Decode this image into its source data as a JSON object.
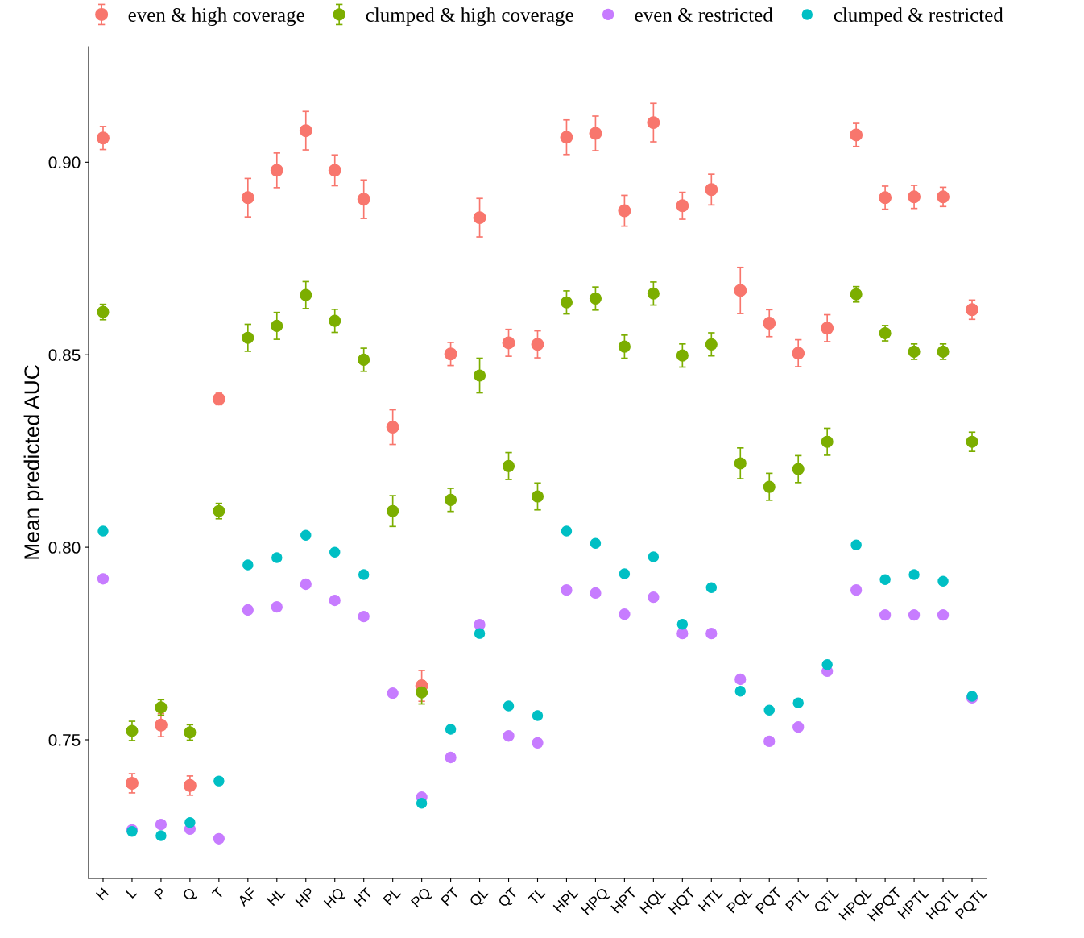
{
  "chart_data": {
    "type": "scatter",
    "ylabel": "Mean predicted AUC",
    "categories": [
      "H",
      "L",
      "P",
      "Q",
      "T",
      "AF",
      "HL",
      "HP",
      "HQ",
      "HT",
      "PL",
      "PQ",
      "PT",
      "QL",
      "QT",
      "TL",
      "HPL",
      "HPQ",
      "HPT",
      "HQL",
      "HQT",
      "HTL",
      "PQL",
      "PQT",
      "PTL",
      "QTL",
      "HPQL",
      "HPQT",
      "HPTL",
      "HQTL",
      "PQTL"
    ],
    "ylim": [
      0.714,
      0.93
    ],
    "yticks": [
      {
        "value": 0.75,
        "label": "0.75"
      },
      {
        "value": 0.8,
        "label": "0.80"
      },
      {
        "value": 0.85,
        "label": "0.85"
      },
      {
        "value": 0.9,
        "label": "0.90"
      }
    ],
    "grid": false,
    "legend": "top",
    "marker": "circle",
    "series": [
      {
        "name": "even & high coverage",
        "color": "#f8766d",
        "values": [
          0.9063,
          0.7387,
          0.7538,
          0.7381,
          0.8385,
          0.8908,
          0.8979,
          0.9082,
          0.8979,
          0.8904,
          0.8312,
          0.764,
          0.8502,
          0.8856,
          0.8531,
          0.8527,
          0.9065,
          0.9075,
          0.8874,
          0.9103,
          0.8887,
          0.8929,
          0.8667,
          0.8582,
          0.8504,
          0.8569,
          0.9071,
          0.8908,
          0.891,
          0.891,
          0.8617
        ],
        "errors": [
          0.003,
          0.0025,
          0.003,
          0.0025,
          0.0015,
          0.005,
          0.0045,
          0.005,
          0.004,
          0.005,
          0.0045,
          0.004,
          0.003,
          0.005,
          0.0035,
          0.0035,
          0.0045,
          0.0045,
          0.004,
          0.005,
          0.0035,
          0.004,
          0.006,
          0.0035,
          0.0035,
          0.0035,
          0.003,
          0.003,
          0.003,
          0.0025,
          0.0025
        ]
      },
      {
        "name": "clumped & high coverage",
        "color": "#7cae00",
        "values": [
          0.8611,
          0.7523,
          0.7584,
          0.7519,
          0.8094,
          0.8544,
          0.8575,
          0.8655,
          0.8588,
          0.8487,
          0.8094,
          0.7623,
          0.8123,
          0.8446,
          0.8211,
          0.8132,
          0.8636,
          0.8646,
          0.8521,
          0.8659,
          0.8498,
          0.8527,
          0.8218,
          0.8157,
          0.8203,
          0.8274,
          0.8657,
          0.8556,
          0.8508,
          0.8508,
          0.8274
        ],
        "errors": [
          0.002,
          0.0025,
          0.002,
          0.002,
          0.002,
          0.0035,
          0.0035,
          0.0035,
          0.003,
          0.003,
          0.004,
          0.003,
          0.003,
          0.0045,
          0.0035,
          0.0035,
          0.003,
          0.003,
          0.003,
          0.003,
          0.003,
          0.003,
          0.004,
          0.0035,
          0.0035,
          0.0035,
          0.002,
          0.002,
          0.002,
          0.002,
          0.0025
        ]
      },
      {
        "name": "even & restricted",
        "color": "#c77cff",
        "values": [
          0.7918,
          0.7266,
          0.728,
          0.7268,
          0.7243,
          0.7837,
          0.7845,
          0.7904,
          0.7862,
          0.782,
          0.7621,
          0.7351,
          0.7454,
          0.7799,
          0.751,
          0.7492,
          0.7889,
          0.7881,
          0.7826,
          0.787,
          0.7776,
          0.7776,
          0.7657,
          0.7496,
          0.7533,
          0.7678,
          0.7889,
          0.7824,
          0.7824,
          0.7824,
          0.7609
        ]
      },
      {
        "name": "clumped & restricted",
        "color": "#00bfc4",
        "values": [
          0.8042,
          0.7262,
          0.7251,
          0.7285,
          0.7393,
          0.7954,
          0.7973,
          0.8031,
          0.7987,
          0.7929,
          null,
          0.7335,
          0.7527,
          0.7776,
          0.7588,
          0.7563,
          0.8042,
          0.801,
          0.7931,
          0.7975,
          0.78,
          0.7895,
          0.7626,
          0.7577,
          0.7596,
          0.7695,
          0.8006,
          0.7916,
          0.7929,
          0.7912,
          0.7613
        ]
      }
    ]
  }
}
